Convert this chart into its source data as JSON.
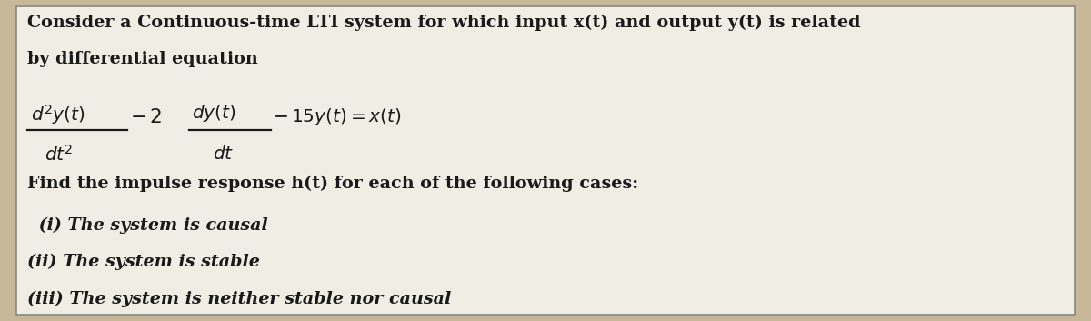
{
  "bg_color": "#c8b89a",
  "panel_color": "#f0ede5",
  "border_color": "#888880",
  "text_color": "#1a1a1a",
  "line1": "Consider a Continuous-time LTI system for which input x(t) and output y(t) is related",
  "line2": "by differential equation",
  "line_find": "Find the impulse response h(t) for each of the following cases:",
  "case1": " (i) The system is causal",
  "case2": "(ii) The system is stable",
  "case3": "(iii) The system is neither stable nor causal",
  "figwidth": 12.0,
  "figheight": 3.53,
  "dpi": 100
}
